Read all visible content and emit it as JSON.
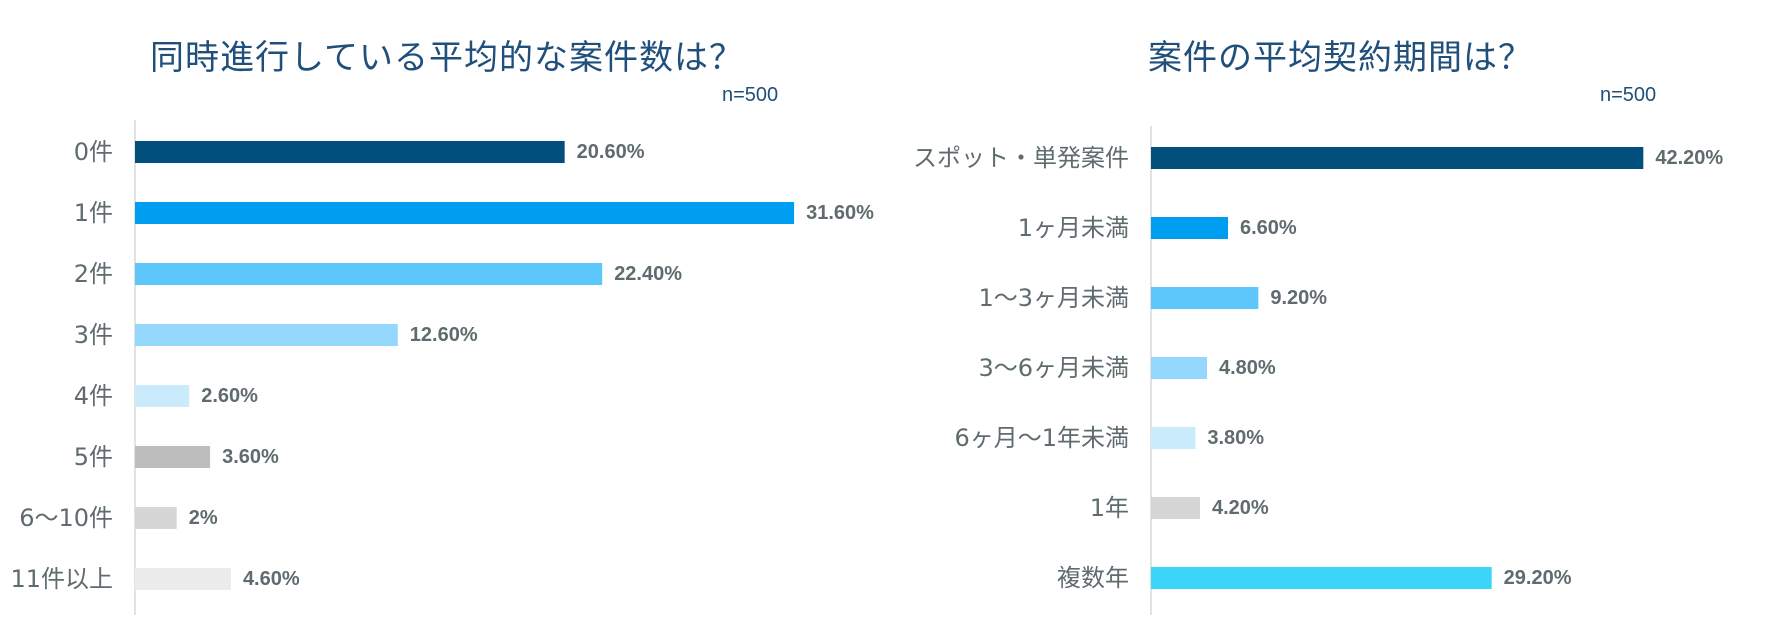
{
  "chart_data": [
    {
      "type": "bar",
      "orientation": "horizontal",
      "title": "同時進行している平均的な案件数は？",
      "sample_size": "n=500",
      "categories": [
        "0件",
        "1件",
        "2件",
        "3件",
        "4件",
        "5件",
        "6〜10件",
        "11件以上"
      ],
      "values": [
        20.6,
        31.6,
        22.4,
        12.6,
        2.6,
        3.6,
        2.0,
        4.6
      ],
      "value_labels": [
        "20.60%",
        "31.60%",
        "22.40%",
        "12.60%",
        "2.60%",
        "3.60%",
        "2%",
        "4.60%"
      ],
      "colors": [
        "#004f7c",
        "#009ef0",
        "#5dc6fb",
        "#93d8fc",
        "#c9ebfc",
        "#bdbdbd",
        "#d6d6d6",
        "#ececec"
      ],
      "xlim": [
        0,
        35
      ],
      "grid": false,
      "legend": "none"
    },
    {
      "type": "bar",
      "orientation": "horizontal",
      "title": "案件の平均契約期間は？",
      "sample_size": "n=500",
      "categories": [
        "スポット・単発案件",
        "1ヶ月未満",
        "1〜3ヶ月未満",
        "3〜6ヶ月未満",
        "6ヶ月〜1年未満",
        "1年",
        "複数年"
      ],
      "values": [
        42.2,
        6.6,
        9.2,
        4.8,
        3.8,
        4.2,
        29.2
      ],
      "value_labels": [
        "42.20%",
        "6.60%",
        "9.20%",
        "4.80%",
        "3.80%",
        "4.20%",
        "29.20%"
      ],
      "colors": [
        "#004f7c",
        "#009ef0",
        "#5dc6fb",
        "#93d8fc",
        "#c9ebfc",
        "#d6d6d6",
        "#3bd5f9"
      ],
      "xlim": [
        0,
        48
      ],
      "grid": false,
      "legend": "none"
    }
  ]
}
